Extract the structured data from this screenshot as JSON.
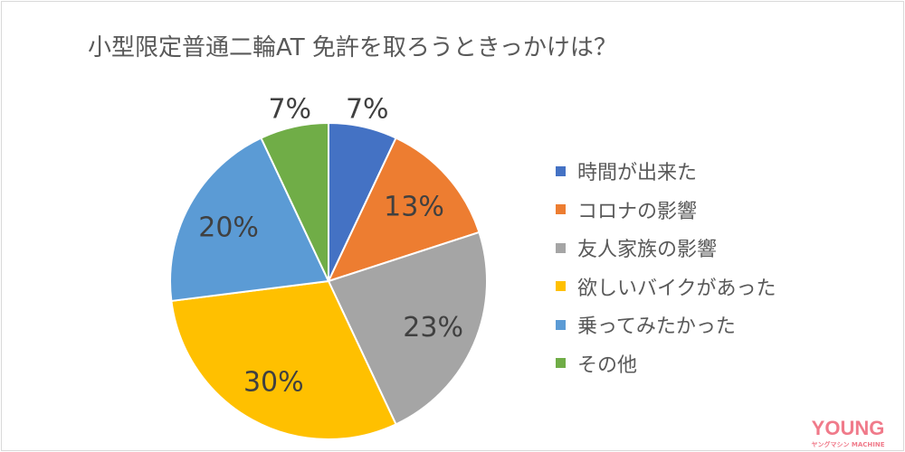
{
  "chart_data": {
    "type": "pie",
    "title": "小型限定普通二輪AT 免許を取ろうときっかけは？",
    "categories": [
      "時間が出来た",
      "コロナの影響",
      "友人家族の影響",
      "欲しいバイクがあった",
      "乗ってみたかった",
      "その他"
    ],
    "values": [
      7,
      13,
      23,
      30,
      20,
      7
    ],
    "labels": [
      "7%",
      "13%",
      "23%",
      "30%",
      "20%",
      "7%"
    ],
    "colors": [
      "#4472c4",
      "#ed7d31",
      "#a5a5a5",
      "#ffc000",
      "#5b9bd5",
      "#70ad47"
    ],
    "start": "top",
    "direction": "clockwise",
    "legend_position": "right"
  },
  "logo": {
    "text": "YOUNG",
    "sub": "ヤングマシン MACHINE",
    "color": "#f07a8a"
  }
}
